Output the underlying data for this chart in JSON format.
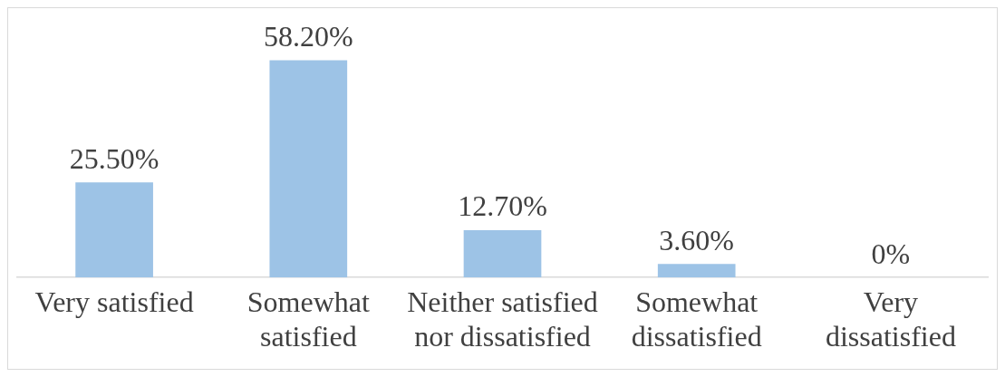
{
  "chart_data": {
    "type": "bar",
    "categories": [
      "Very satisfied",
      "Somewhat satisfied",
      "Neither satisfied nor dissatisfied",
      "Somewhat dissatisfied",
      "Very dissatisfied"
    ],
    "values": [
      25.5,
      58.2,
      12.7,
      3.6,
      0
    ],
    "value_labels": [
      "25.50%",
      "58.20%",
      "12.70%",
      "3.60%",
      "0%"
    ],
    "color": "#9dc3e6",
    "grid": false,
    "legend": false
  }
}
